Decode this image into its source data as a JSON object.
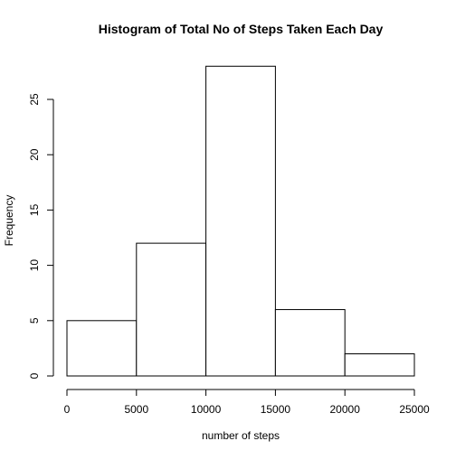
{
  "chart_data": {
    "type": "bar",
    "title": "Histogram of Total No of Steps Taken Each Day",
    "xlabel": "number of steps",
    "ylabel": "Frequency",
    "bins": [
      {
        "start": 0,
        "end": 5000,
        "count": 5
      },
      {
        "start": 5000,
        "end": 10000,
        "count": 12
      },
      {
        "start": 10000,
        "end": 15000,
        "count": 28
      },
      {
        "start": 15000,
        "end": 20000,
        "count": 6
      },
      {
        "start": 20000,
        "end": 25000,
        "count": 2
      }
    ],
    "xlim": [
      0,
      25000
    ],
    "ylim": [
      0,
      28
    ],
    "xticks": [
      0,
      5000,
      10000,
      15000,
      20000,
      25000
    ],
    "yticks": [
      0,
      5,
      10,
      15,
      20,
      25
    ],
    "grid": false,
    "legend": "none"
  }
}
